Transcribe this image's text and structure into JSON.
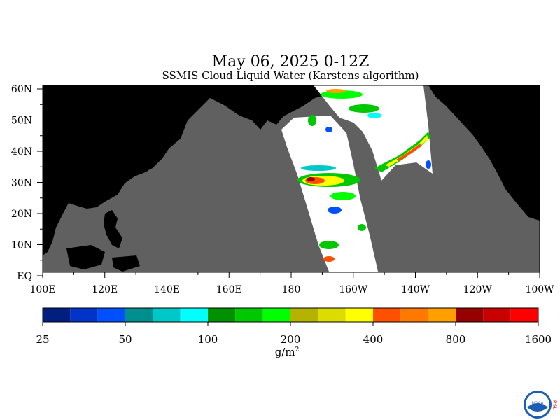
{
  "title": "May 06, 2025 0-12Z",
  "subtitle": "SSMIS Cloud Liquid Water (Karstens algorithm)",
  "lat_labels": [
    "60N",
    "50N",
    "40N",
    "30N",
    "20N",
    "10N",
    "EQ"
  ],
  "lon_labels": [
    "100E",
    "120E",
    "140E",
    "160E",
    "180",
    "160W",
    "140W",
    "120W",
    "100W"
  ],
  "colorbar": {
    "labels": [
      "25",
      "50",
      "100",
      "200",
      "400",
      "800",
      "1600"
    ],
    "units_base": "g/m",
    "units_exp": "2",
    "colors": [
      "#001f7f",
      "#0033c8",
      "#0050ff",
      "#008f8f",
      "#00c8c8",
      "#00ffff",
      "#009000",
      "#00c800",
      "#00ff00",
      "#b4b400",
      "#dcdc00",
      "#ffff00",
      "#ff5000",
      "#ff7800",
      "#ffa000",
      "#960000",
      "#c80000",
      "#ff0000"
    ]
  },
  "colors": {
    "land": "#000000",
    "no_data": "#606060",
    "clear": "#ffffff"
  },
  "logo": {
    "name": "NOAA",
    "side_text": "PSL"
  }
}
